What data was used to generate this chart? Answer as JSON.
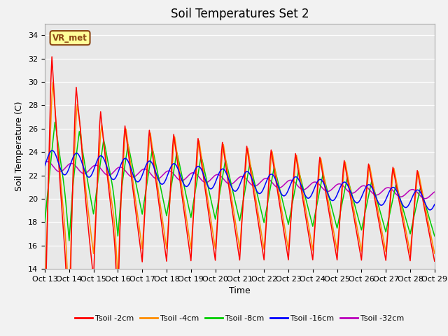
{
  "title": "Soil Temperatures Set 2",
  "xlabel": "Time",
  "ylabel": "Soil Temperature (C)",
  "ylim": [
    14,
    35
  ],
  "yticks": [
    14,
    16,
    18,
    20,
    22,
    24,
    26,
    28,
    30,
    32,
    34
  ],
  "x_tick_labels": [
    "Oct 14",
    "Oct 15",
    "Oct 16",
    "Oct 17",
    "Oct 18",
    "Oct 19",
    "Oct 20",
    "Oct 21",
    "Oct 22",
    "Oct 23",
    "Oct 24",
    "Oct 25",
    "Oct 26",
    "Oct 27",
    "Oct 28",
    "Oct 29"
  ],
  "annotation_text": "VR_met",
  "colors": {
    "Tsoil -2cm": "#FF0000",
    "Tsoil -4cm": "#FF8C00",
    "Tsoil -8cm": "#00CC00",
    "Tsoil -16cm": "#0000FF",
    "Tsoil -32cm": "#BB00BB"
  },
  "bg_color": "#E8E8E8",
  "fig_bg_color": "#F2F2F2",
  "title_fontsize": 12,
  "label_fontsize": 9,
  "tick_fontsize": 8
}
